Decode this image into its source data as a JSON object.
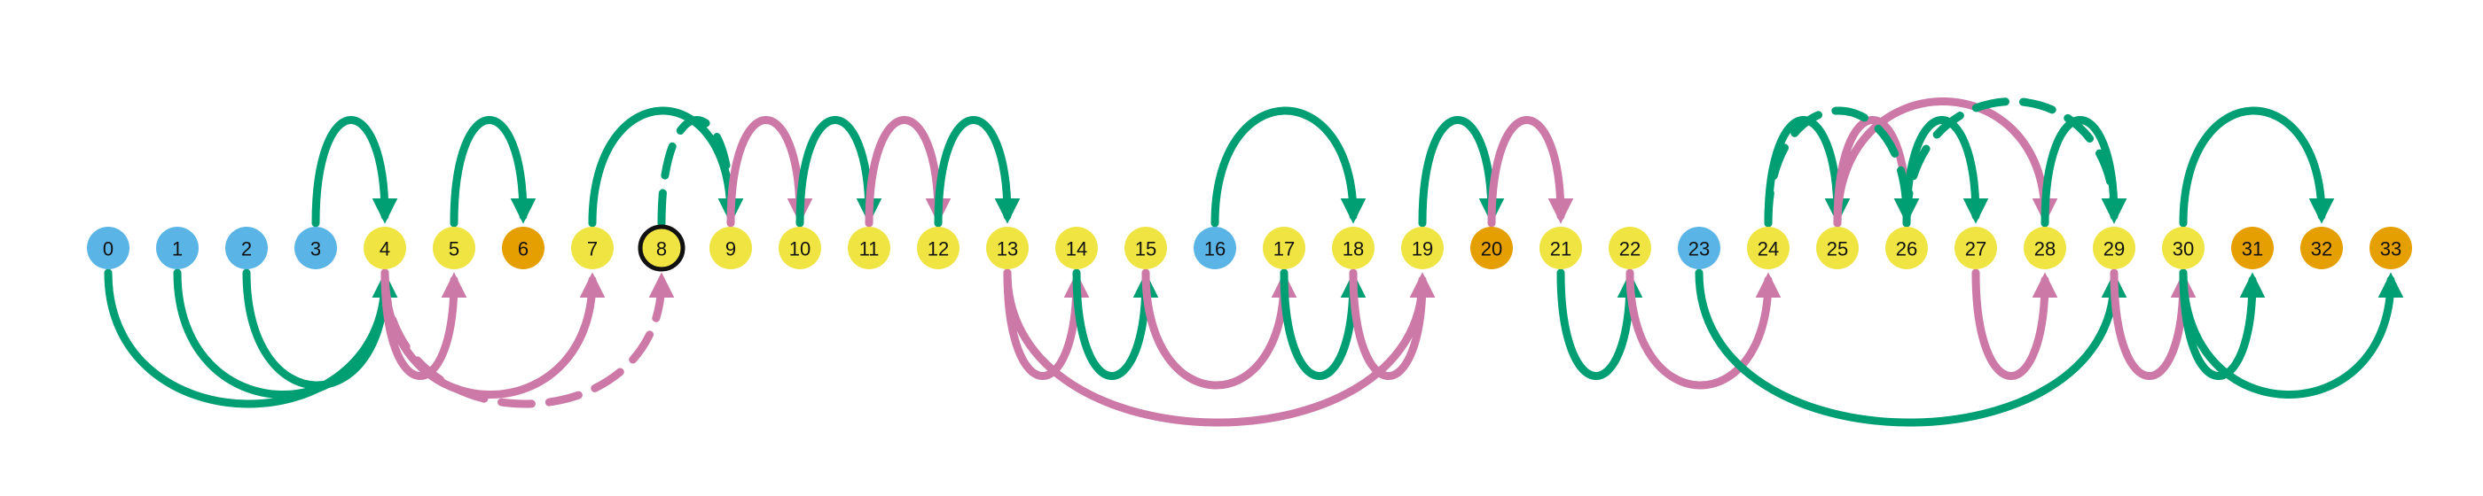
{
  "colors": {
    "blue": "#5ab4e6",
    "yellow": "#f0e442",
    "orange": "#e69f00",
    "green": "#009e73",
    "pink": "#cc79a7",
    "highlight_ring": "#111111"
  },
  "nodes": [
    {
      "id": 0,
      "label": "0",
      "color": "blue"
    },
    {
      "id": 1,
      "label": "1",
      "color": "blue"
    },
    {
      "id": 2,
      "label": "2",
      "color": "blue"
    },
    {
      "id": 3,
      "label": "3",
      "color": "blue"
    },
    {
      "id": 4,
      "label": "4",
      "color": "yellow"
    },
    {
      "id": 5,
      "label": "5",
      "color": "yellow"
    },
    {
      "id": 6,
      "label": "6",
      "color": "orange"
    },
    {
      "id": 7,
      "label": "7",
      "color": "yellow"
    },
    {
      "id": 8,
      "label": "8",
      "color": "yellow",
      "highlighted": true
    },
    {
      "id": 9,
      "label": "9",
      "color": "yellow"
    },
    {
      "id": 10,
      "label": "10",
      "color": "yellow"
    },
    {
      "id": 11,
      "label": "11",
      "color": "yellow"
    },
    {
      "id": 12,
      "label": "12",
      "color": "yellow"
    },
    {
      "id": 13,
      "label": "13",
      "color": "yellow"
    },
    {
      "id": 14,
      "label": "14",
      "color": "yellow"
    },
    {
      "id": 15,
      "label": "15",
      "color": "yellow"
    },
    {
      "id": 16,
      "label": "16",
      "color": "blue"
    },
    {
      "id": 17,
      "label": "17",
      "color": "yellow"
    },
    {
      "id": 18,
      "label": "18",
      "color": "yellow"
    },
    {
      "id": 19,
      "label": "19",
      "color": "yellow"
    },
    {
      "id": 20,
      "label": "20",
      "color": "orange"
    },
    {
      "id": 21,
      "label": "21",
      "color": "yellow"
    },
    {
      "id": 22,
      "label": "22",
      "color": "yellow"
    },
    {
      "id": 23,
      "label": "23",
      "color": "blue"
    },
    {
      "id": 24,
      "label": "24",
      "color": "yellow"
    },
    {
      "id": 25,
      "label": "25",
      "color": "yellow"
    },
    {
      "id": 26,
      "label": "26",
      "color": "yellow"
    },
    {
      "id": 27,
      "label": "27",
      "color": "yellow"
    },
    {
      "id": 28,
      "label": "28",
      "color": "yellow"
    },
    {
      "id": 29,
      "label": "29",
      "color": "yellow"
    },
    {
      "id": 30,
      "label": "30",
      "color": "yellow"
    },
    {
      "id": 31,
      "label": "31",
      "color": "orange"
    },
    {
      "id": 32,
      "label": "32",
      "color": "orange"
    },
    {
      "id": 33,
      "label": "33",
      "color": "orange"
    }
  ],
  "arcs": [
    {
      "from": 3,
      "to": 4,
      "side": "top",
      "color": "green"
    },
    {
      "from": 5,
      "to": 6,
      "side": "top",
      "color": "green"
    },
    {
      "from": 7,
      "to": 9,
      "side": "top",
      "color": "green"
    },
    {
      "from": 8,
      "to": 9,
      "side": "top",
      "color": "green",
      "dashed": true
    },
    {
      "from": 9,
      "to": 10,
      "side": "top",
      "color": "pink"
    },
    {
      "from": 10,
      "to": 11,
      "side": "top",
      "color": "green"
    },
    {
      "from": 11,
      "to": 12,
      "side": "top",
      "color": "pink"
    },
    {
      "from": 12,
      "to": 13,
      "side": "top",
      "color": "green"
    },
    {
      "from": 16,
      "to": 18,
      "side": "top",
      "color": "green"
    },
    {
      "from": 19,
      "to": 20,
      "side": "top",
      "color": "green"
    },
    {
      "from": 20,
      "to": 21,
      "side": "top",
      "color": "pink"
    },
    {
      "from": 24,
      "to": 25,
      "side": "top",
      "color": "green"
    },
    {
      "from": 25,
      "to": 26,
      "side": "top",
      "color": "pink"
    },
    {
      "from": 25,
      "to": 28,
      "side": "top",
      "color": "pink"
    },
    {
      "from": 26,
      "to": 27,
      "side": "top",
      "color": "green"
    },
    {
      "from": 24,
      "to": 26,
      "side": "top",
      "color": "green",
      "dashed": true
    },
    {
      "from": 26,
      "to": 29,
      "side": "top",
      "color": "green",
      "dashed": true
    },
    {
      "from": 28,
      "to": 29,
      "side": "top",
      "color": "green"
    },
    {
      "from": 30,
      "to": 32,
      "side": "top",
      "color": "green"
    },
    {
      "from": 0,
      "to": 4,
      "side": "bottom",
      "color": "green"
    },
    {
      "from": 1,
      "to": 4,
      "side": "bottom",
      "color": "green"
    },
    {
      "from": 2,
      "to": 4,
      "side": "bottom",
      "color": "green"
    },
    {
      "from": 4,
      "to": 5,
      "side": "bottom",
      "color": "pink"
    },
    {
      "from": 4,
      "to": 7,
      "side": "bottom",
      "color": "pink"
    },
    {
      "from": 4,
      "to": 8,
      "side": "bottom",
      "color": "pink",
      "dashed": true
    },
    {
      "from": 13,
      "to": 14,
      "side": "bottom",
      "color": "pink"
    },
    {
      "from": 14,
      "to": 15,
      "side": "bottom",
      "color": "green"
    },
    {
      "from": 13,
      "to": 19,
      "side": "bottom",
      "color": "pink"
    },
    {
      "from": 15,
      "to": 17,
      "side": "bottom",
      "color": "pink"
    },
    {
      "from": 17,
      "to": 18,
      "side": "bottom",
      "color": "green"
    },
    {
      "from": 18,
      "to": 19,
      "side": "bottom",
      "color": "pink"
    },
    {
      "from": 21,
      "to": 22,
      "side": "bottom",
      "color": "green"
    },
    {
      "from": 22,
      "to": 24,
      "side": "bottom",
      "color": "pink"
    },
    {
      "from": 23,
      "to": 29,
      "side": "bottom",
      "color": "green"
    },
    {
      "from": 27,
      "to": 28,
      "side": "bottom",
      "color": "pink"
    },
    {
      "from": 29,
      "to": 30,
      "side": "bottom",
      "color": "pink"
    },
    {
      "from": 30,
      "to": 31,
      "side": "bottom",
      "color": "green"
    },
    {
      "from": 30,
      "to": 33,
      "side": "bottom",
      "color": "green"
    }
  ]
}
